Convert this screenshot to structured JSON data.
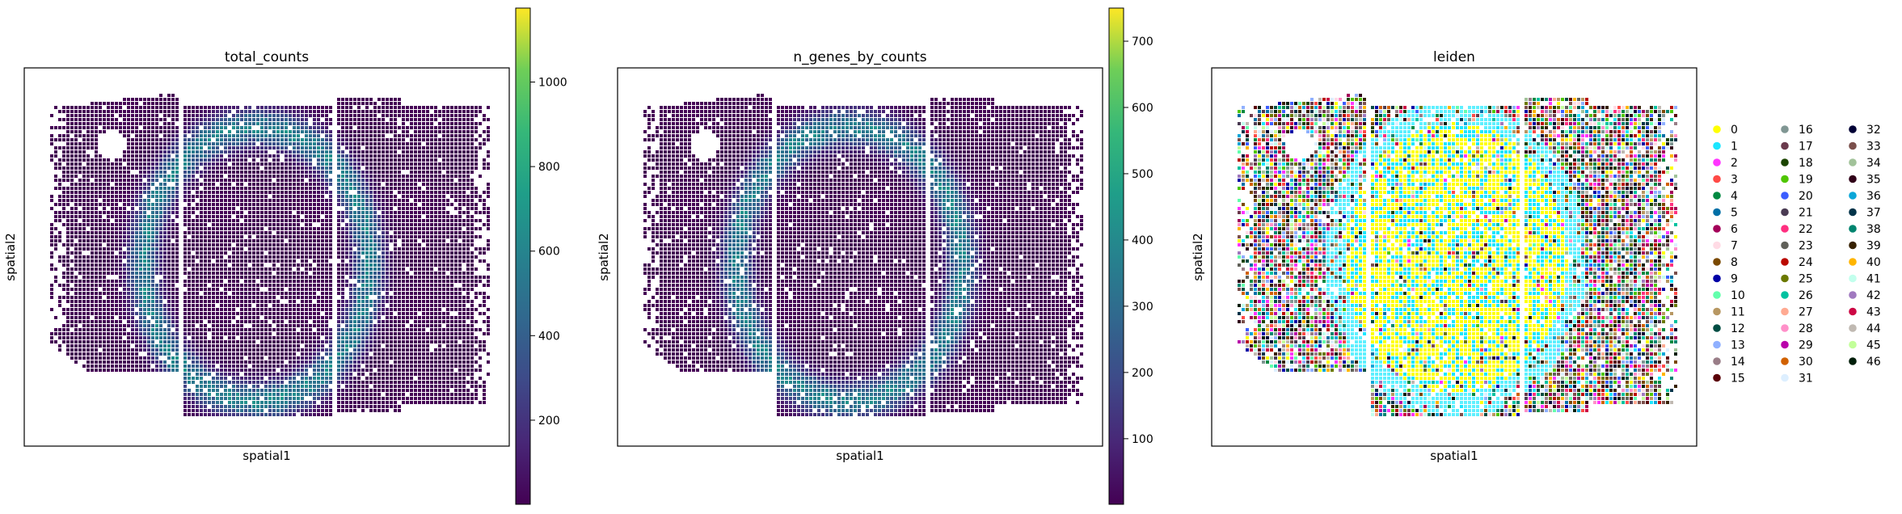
{
  "chart_data": [
    {
      "type": "scatter",
      "title": "total_counts",
      "xlabel": "spatial1",
      "ylabel": "spatial2",
      "color_scale": "viridis",
      "colorbar": {
        "vmin": 1,
        "vmax": 1175,
        "ticks": [
          200,
          400,
          600,
          800,
          1000
        ]
      }
    },
    {
      "type": "scatter",
      "title": "n_genes_by_counts",
      "xlabel": "spatial1",
      "ylabel": "spatial2",
      "color_scale": "viridis",
      "colorbar": {
        "vmin": 1,
        "vmax": 750,
        "ticks": [
          100,
          200,
          300,
          400,
          500,
          600,
          700
        ]
      }
    },
    {
      "type": "scatter",
      "title": "leiden",
      "xlabel": "spatial1",
      "ylabel": "spatial2",
      "legend_position": "right",
      "legend": [
        {
          "label": "0",
          "color": "#ffff00"
        },
        {
          "label": "1",
          "color": "#1ce6ff"
        },
        {
          "label": "2",
          "color": "#ff34ff"
        },
        {
          "label": "3",
          "color": "#ff4a46"
        },
        {
          "label": "4",
          "color": "#008941"
        },
        {
          "label": "5",
          "color": "#006fa6"
        },
        {
          "label": "6",
          "color": "#a30059"
        },
        {
          "label": "7",
          "color": "#ffdbe5"
        },
        {
          "label": "8",
          "color": "#7a4900"
        },
        {
          "label": "9",
          "color": "#0000a6"
        },
        {
          "label": "10",
          "color": "#63ffac"
        },
        {
          "label": "11",
          "color": "#b79762"
        },
        {
          "label": "12",
          "color": "#004d43"
        },
        {
          "label": "13",
          "color": "#8fb0ff"
        },
        {
          "label": "14",
          "color": "#997d87"
        },
        {
          "label": "15",
          "color": "#5a0007"
        },
        {
          "label": "16",
          "color": "#809693"
        },
        {
          "label": "17",
          "color": "#6a3a4c"
        },
        {
          "label": "18",
          "color": "#1b4400"
        },
        {
          "label": "19",
          "color": "#4fc601"
        },
        {
          "label": "20",
          "color": "#3b5dff"
        },
        {
          "label": "21",
          "color": "#4a3b53"
        },
        {
          "label": "22",
          "color": "#ff2f80"
        },
        {
          "label": "23",
          "color": "#61615a"
        },
        {
          "label": "24",
          "color": "#ba0900"
        },
        {
          "label": "25",
          "color": "#6b7900"
        },
        {
          "label": "26",
          "color": "#00c2a0"
        },
        {
          "label": "27",
          "color": "#ffaa92"
        },
        {
          "label": "28",
          "color": "#ff90c9"
        },
        {
          "label": "29",
          "color": "#b903aa"
        },
        {
          "label": "30",
          "color": "#d16100"
        },
        {
          "label": "31",
          "color": "#ddefff"
        },
        {
          "label": "32",
          "color": "#000035"
        },
        {
          "label": "33",
          "color": "#7b4f4b"
        },
        {
          "label": "34",
          "color": "#a1c299"
        },
        {
          "label": "35",
          "color": "#300018"
        },
        {
          "label": "36",
          "color": "#0aa6d8"
        },
        {
          "label": "37",
          "color": "#013349"
        },
        {
          "label": "38",
          "color": "#00846f"
        },
        {
          "label": "39",
          "color": "#372101"
        },
        {
          "label": "40",
          "color": "#ffb500"
        },
        {
          "label": "41",
          "color": "#c2ffed"
        },
        {
          "label": "42",
          "color": "#a079bf"
        },
        {
          "label": "43",
          "color": "#cc0744"
        },
        {
          "label": "44",
          "color": "#c0b9b2"
        },
        {
          "label": "45",
          "color": "#c2ff99"
        },
        {
          "label": "46",
          "color": "#001e09"
        }
      ]
    }
  ]
}
